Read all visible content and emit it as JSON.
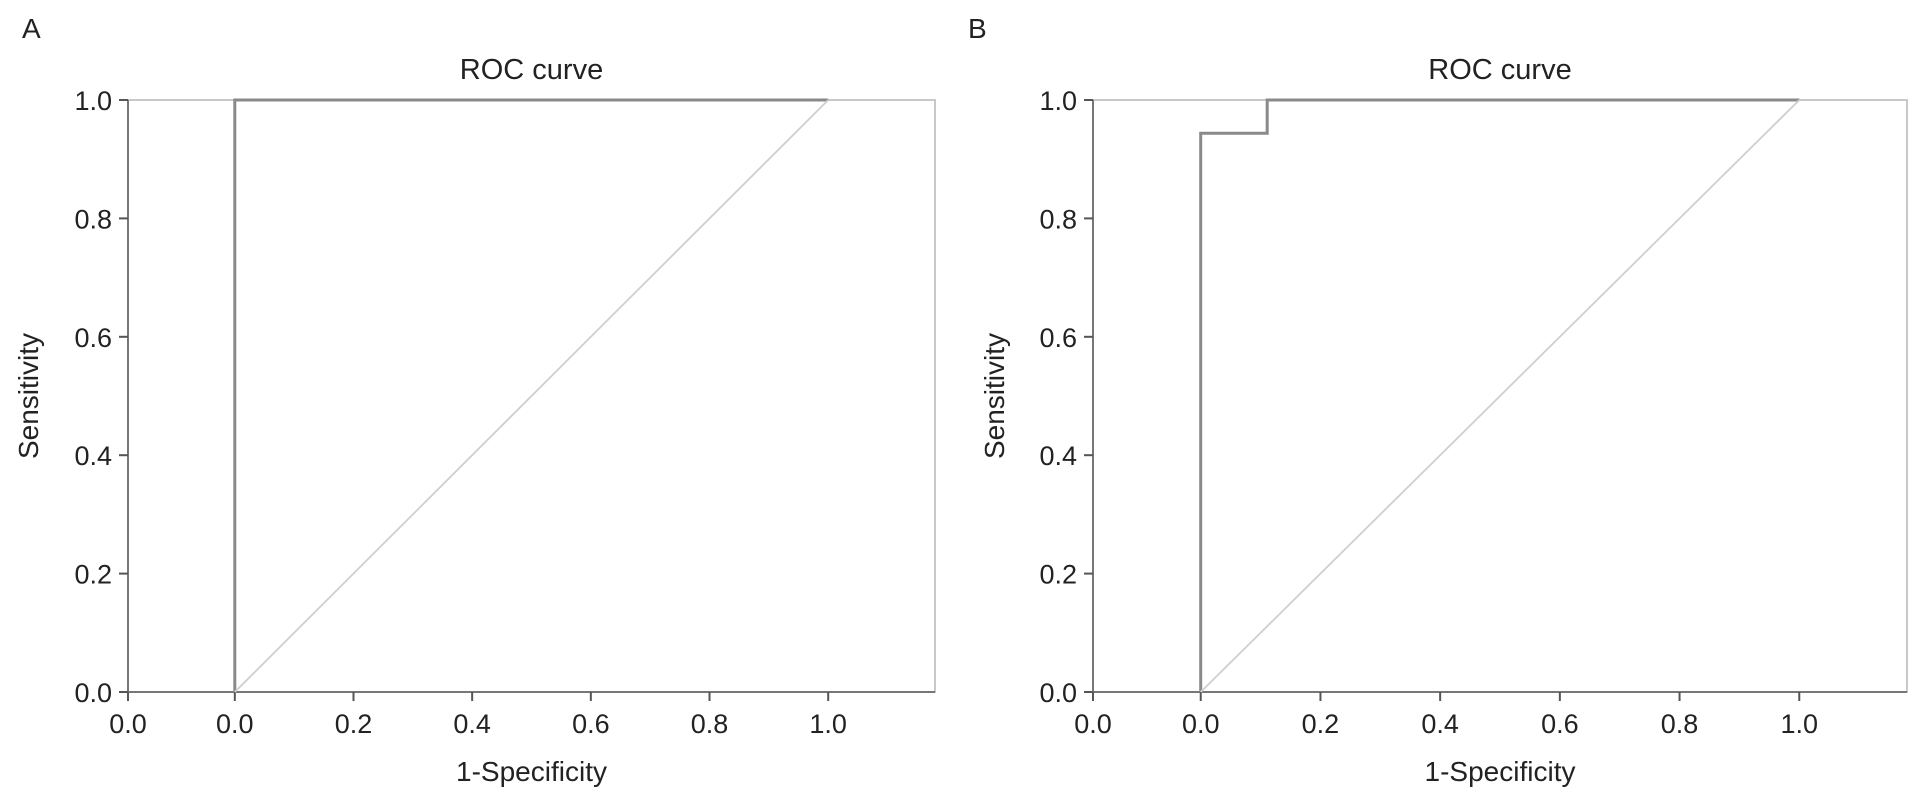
{
  "chart_data": [
    {
      "type": "line",
      "panel_label": "A",
      "title": "ROC curve",
      "xlabel": "1-Specificity",
      "ylabel": "Sensitivity",
      "x_tick_labels": [
        "0.0",
        "0.0",
        "0.2",
        "0.4",
        "0.6",
        "0.8",
        "1.0"
      ],
      "y_tick_labels": [
        "0.0",
        "0.2",
        "0.4",
        "0.6",
        "0.8",
        "1.0"
      ],
      "xlim": [
        -0.18,
        1.18
      ],
      "ylim": [
        0,
        1
      ],
      "grid": false,
      "colors": {
        "curve": "#8a8a8a",
        "reference": "#cfcfcf",
        "frame": "#c8c8c8"
      },
      "series": [
        {
          "role": "roc",
          "x": [
            0.0,
            0.0,
            1.0
          ],
          "y": [
            0.0,
            1.0,
            1.0
          ]
        },
        {
          "role": "reference",
          "x": [
            0.0,
            1.0
          ],
          "y": [
            0.0,
            1.0
          ]
        }
      ]
    },
    {
      "type": "line",
      "panel_label": "B",
      "title": "ROC curve",
      "xlabel": "1-Specificity",
      "ylabel": "Sensitivity",
      "x_tick_labels": [
        "0.0",
        "0.0",
        "0.2",
        "0.4",
        "0.6",
        "0.8",
        "1.0"
      ],
      "y_tick_labels": [
        "0.0",
        "0.2",
        "0.4",
        "0.6",
        "0.8",
        "1.0"
      ],
      "xlim": [
        -0.18,
        1.18
      ],
      "ylim": [
        0,
        1
      ],
      "grid": false,
      "colors": {
        "curve": "#8a8a8a",
        "reference": "#cfcfcf",
        "frame": "#c8c8c8"
      },
      "series": [
        {
          "role": "roc",
          "x": [
            0.0,
            0.0,
            0.111,
            0.111,
            1.0
          ],
          "y": [
            0.0,
            0.944,
            0.944,
            1.0,
            1.0
          ]
        },
        {
          "role": "reference",
          "x": [
            0.0,
            1.0
          ],
          "y": [
            0.0,
            1.0
          ]
        }
      ]
    }
  ]
}
